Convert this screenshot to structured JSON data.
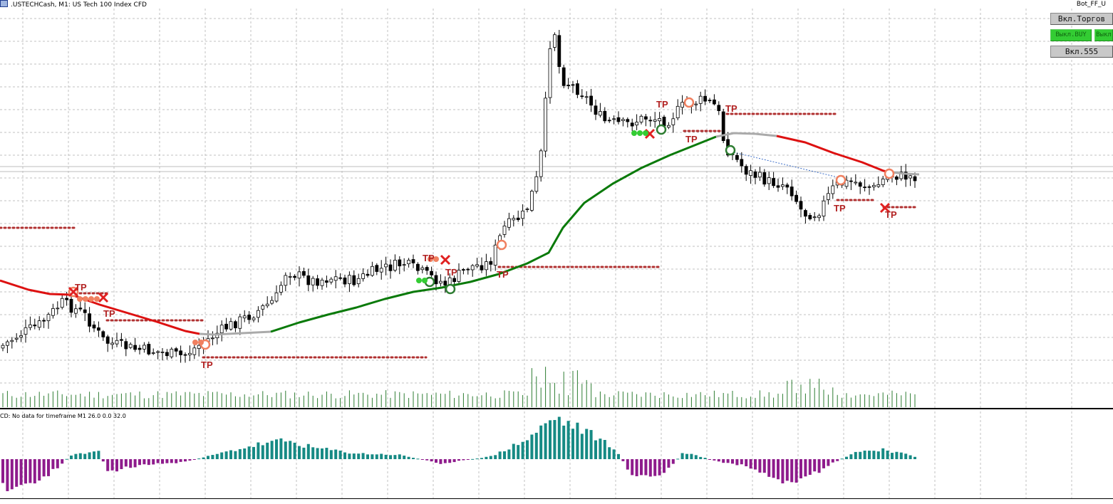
{
  "window": {
    "title": ".USTECHCash, M1:  US Tech 100 Index CFD",
    "expert_name": "Bot_FF_U"
  },
  "subwindow": {
    "label": "CD: No data for timeframe M1 26.0 0.0 32.0"
  },
  "panel": {
    "trading_button": "Вкл.Торгов",
    "buy_button": "Выкл.BUY",
    "sell_button": "Выкл",
    "mode_button": "Вкл.555"
  },
  "markers": {
    "tp_label": "TP"
  },
  "colors": {
    "background": "#ffffff",
    "grid": "#c0c0c0",
    "bull_candle": "#ffffff",
    "bear_candle": "#000000",
    "ma_up": "#0a7a0a",
    "ma_down": "#dd1111",
    "ma_flat": "#aaaaaa",
    "volume": "#2e7d32",
    "histogram_positive": "#168a84",
    "histogram_negative": "#8e1b8c",
    "tp_text": "#b22222",
    "level_dots": "#b03030",
    "buttons_gray": "#c8c8c8",
    "buttons_green": "#33cc33"
  }
}
